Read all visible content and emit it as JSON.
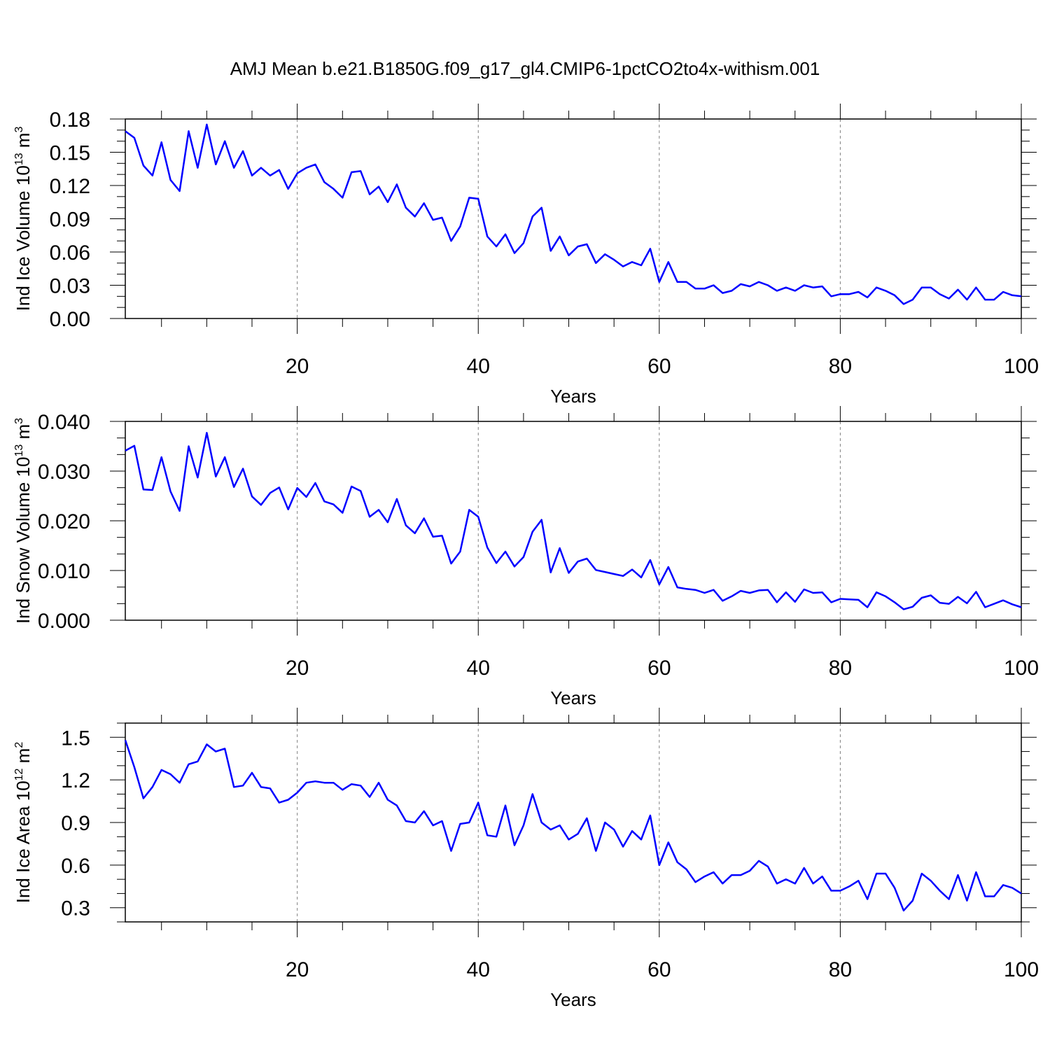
{
  "figure_title": "AMJ Mean b.e21.B1850G.f09_g17_gl4.CMIP6-1pctCO2to4x-withism.001",
  "colors": {
    "series": "#0000ff",
    "axes": "#000000",
    "grid": "#808080"
  },
  "chart_data": [
    {
      "type": "line",
      "title": "",
      "xlabel": "Years",
      "ylabel": {
        "text": "Ind Ice Volume 10",
        "exponent": "13",
        "unit": " m",
        "unit_exponent": "3"
      },
      "xlim": [
        1,
        100
      ],
      "ylim": [
        0,
        0.18
      ],
      "xticks": [
        20,
        40,
        60,
        80,
        100
      ],
      "yticks": [
        "0.00",
        "0.03",
        "0.06",
        "0.09",
        "0.12",
        "0.15",
        "0.18"
      ],
      "grid": "vertical dashed at major x ticks",
      "x": [
        1,
        2,
        3,
        4,
        5,
        6,
        7,
        8,
        9,
        10,
        11,
        12,
        13,
        14,
        15,
        16,
        17,
        18,
        19,
        20,
        21,
        22,
        23,
        24,
        25,
        26,
        27,
        28,
        29,
        30,
        31,
        32,
        33,
        34,
        35,
        36,
        37,
        38,
        39,
        40,
        41,
        42,
        43,
        44,
        45,
        46,
        47,
        48,
        49,
        50,
        51,
        52,
        53,
        54,
        55,
        56,
        57,
        58,
        59,
        60,
        61,
        62,
        63,
        64,
        65,
        66,
        67,
        68,
        69,
        70,
        71,
        72,
        73,
        74,
        75,
        76,
        77,
        78,
        79,
        80,
        81,
        82,
        83,
        84,
        85,
        86,
        87,
        88,
        89,
        90,
        91,
        92,
        93,
        94,
        95,
        96,
        97,
        98,
        99,
        100
      ],
      "values": [
        0.169,
        0.163,
        0.138,
        0.129,
        0.159,
        0.125,
        0.115,
        0.169,
        0.136,
        0.175,
        0.139,
        0.16,
        0.136,
        0.151,
        0.129,
        0.136,
        0.129,
        0.134,
        0.117,
        0.131,
        0.136,
        0.139,
        0.123,
        0.117,
        0.109,
        0.132,
        0.133,
        0.112,
        0.119,
        0.105,
        0.121,
        0.1,
        0.092,
        0.104,
        0.089,
        0.091,
        0.07,
        0.083,
        0.109,
        0.108,
        0.074,
        0.065,
        0.076,
        0.059,
        0.068,
        0.092,
        0.1,
        0.061,
        0.074,
        0.057,
        0.065,
        0.067,
        0.05,
        0.058,
        0.053,
        0.047,
        0.051,
        0.048,
        0.063,
        0.033,
        0.051,
        0.033,
        0.033,
        0.027,
        0.027,
        0.03,
        0.023,
        0.025,
        0.031,
        0.029,
        0.033,
        0.03,
        0.025,
        0.028,
        0.025,
        0.03,
        0.028,
        0.029,
        0.02,
        0.022,
        0.022,
        0.024,
        0.019,
        0.028,
        0.025,
        0.021,
        0.013,
        0.017,
        0.028,
        0.028,
        0.022,
        0.018,
        0.026,
        0.017,
        0.028,
        0.017,
        0.017,
        0.024,
        0.021,
        0.02
      ]
    },
    {
      "type": "line",
      "title": "",
      "xlabel": "Years",
      "ylabel": {
        "text": "Ind Snow Volume 10",
        "exponent": "13",
        "unit": " m",
        "unit_exponent": "3"
      },
      "xlim": [
        1,
        100
      ],
      "ylim": [
        0,
        0.04
      ],
      "xticks": [
        20,
        40,
        60,
        80,
        100
      ],
      "yticks": [
        "0.000",
        "0.010",
        "0.020",
        "0.030",
        "0.040"
      ],
      "grid": "vertical dashed at major x ticks",
      "x": [
        1,
        2,
        3,
        4,
        5,
        6,
        7,
        8,
        9,
        10,
        11,
        12,
        13,
        14,
        15,
        16,
        17,
        18,
        19,
        20,
        21,
        22,
        23,
        24,
        25,
        26,
        27,
        28,
        29,
        30,
        31,
        32,
        33,
        34,
        35,
        36,
        37,
        38,
        39,
        40,
        41,
        42,
        43,
        44,
        45,
        46,
        47,
        48,
        49,
        50,
        51,
        52,
        53,
        54,
        55,
        56,
        57,
        58,
        59,
        60,
        61,
        62,
        63,
        64,
        65,
        66,
        67,
        68,
        69,
        70,
        71,
        72,
        73,
        74,
        75,
        76,
        77,
        78,
        79,
        80,
        81,
        82,
        83,
        84,
        85,
        86,
        87,
        88,
        89,
        90,
        91,
        92,
        93,
        94,
        95,
        96,
        97,
        98,
        99,
        100
      ],
      "values": [
        0.0341,
        0.0351,
        0.0263,
        0.0262,
        0.0328,
        0.0259,
        0.022,
        0.035,
        0.0287,
        0.0377,
        0.0289,
        0.0328,
        0.0268,
        0.0305,
        0.0249,
        0.0232,
        0.0256,
        0.0267,
        0.0223,
        0.0266,
        0.0248,
        0.0276,
        0.0239,
        0.0233,
        0.0216,
        0.0269,
        0.026,
        0.0208,
        0.0222,
        0.0197,
        0.0244,
        0.0191,
        0.0175,
        0.0205,
        0.0168,
        0.017,
        0.0114,
        0.0138,
        0.0222,
        0.0208,
        0.0146,
        0.0115,
        0.0138,
        0.0108,
        0.0127,
        0.0178,
        0.0202,
        0.0096,
        0.0145,
        0.0095,
        0.0118,
        0.0124,
        0.0101,
        0.0097,
        0.0093,
        0.0089,
        0.0102,
        0.0086,
        0.0121,
        0.0072,
        0.0107,
        0.0066,
        0.0063,
        0.0061,
        0.0055,
        0.0061,
        0.0039,
        0.0048,
        0.0059,
        0.0055,
        0.006,
        0.0061,
        0.0036,
        0.0056,
        0.0037,
        0.0062,
        0.0055,
        0.0056,
        0.0036,
        0.0043,
        0.0042,
        0.0041,
        0.0026,
        0.0056,
        0.0048,
        0.0036,
        0.0022,
        0.0027,
        0.0045,
        0.005,
        0.0035,
        0.0033,
        0.0047,
        0.0034,
        0.0057,
        0.0026,
        0.0033,
        0.004,
        0.0032,
        0.0026
      ]
    },
    {
      "type": "line",
      "title": "",
      "xlabel": "Years",
      "ylabel": {
        "text": "Ind Ice Area 10",
        "exponent": "12",
        "unit": " m",
        "unit_exponent": "2"
      },
      "xlim": [
        1,
        100
      ],
      "ylim": [
        0.2,
        1.6
      ],
      "xticks": [
        20,
        40,
        60,
        80,
        100
      ],
      "yticks": [
        "0.3",
        "0.6",
        "0.9",
        "1.2",
        "1.5"
      ],
      "grid": "vertical dashed at major x ticks",
      "x": [
        1,
        2,
        3,
        4,
        5,
        6,
        7,
        8,
        9,
        10,
        11,
        12,
        13,
        14,
        15,
        16,
        17,
        18,
        19,
        20,
        21,
        22,
        23,
        24,
        25,
        26,
        27,
        28,
        29,
        30,
        31,
        32,
        33,
        34,
        35,
        36,
        37,
        38,
        39,
        40,
        41,
        42,
        43,
        44,
        45,
        46,
        47,
        48,
        49,
        50,
        51,
        52,
        53,
        54,
        55,
        56,
        57,
        58,
        59,
        60,
        61,
        62,
        63,
        64,
        65,
        66,
        67,
        68,
        69,
        70,
        71,
        72,
        73,
        74,
        75,
        76,
        77,
        78,
        79,
        80,
        81,
        82,
        83,
        84,
        85,
        86,
        87,
        88,
        89,
        90,
        91,
        92,
        93,
        94,
        95,
        96,
        97,
        98,
        99,
        100
      ],
      "values": [
        1.48,
        1.29,
        1.07,
        1.15,
        1.27,
        1.24,
        1.18,
        1.31,
        1.33,
        1.45,
        1.4,
        1.42,
        1.15,
        1.16,
        1.25,
        1.15,
        1.14,
        1.04,
        1.06,
        1.11,
        1.18,
        1.19,
        1.18,
        1.18,
        1.13,
        1.17,
        1.16,
        1.08,
        1.18,
        1.06,
        1.02,
        0.91,
        0.9,
        0.98,
        0.88,
        0.91,
        0.7,
        0.89,
        0.9,
        1.04,
        0.81,
        0.8,
        1.02,
        0.74,
        0.88,
        1.1,
        0.9,
        0.85,
        0.88,
        0.78,
        0.82,
        0.93,
        0.7,
        0.9,
        0.85,
        0.73,
        0.84,
        0.78,
        0.95,
        0.6,
        0.76,
        0.62,
        0.57,
        0.48,
        0.52,
        0.55,
        0.47,
        0.53,
        0.53,
        0.56,
        0.63,
        0.59,
        0.47,
        0.5,
        0.47,
        0.58,
        0.47,
        0.52,
        0.42,
        0.42,
        0.45,
        0.49,
        0.36,
        0.54,
        0.54,
        0.44,
        0.28,
        0.35,
        0.54,
        0.49,
        0.42,
        0.36,
        0.53,
        0.35,
        0.55,
        0.38,
        0.38,
        0.46,
        0.44,
        0.4
      ]
    }
  ]
}
